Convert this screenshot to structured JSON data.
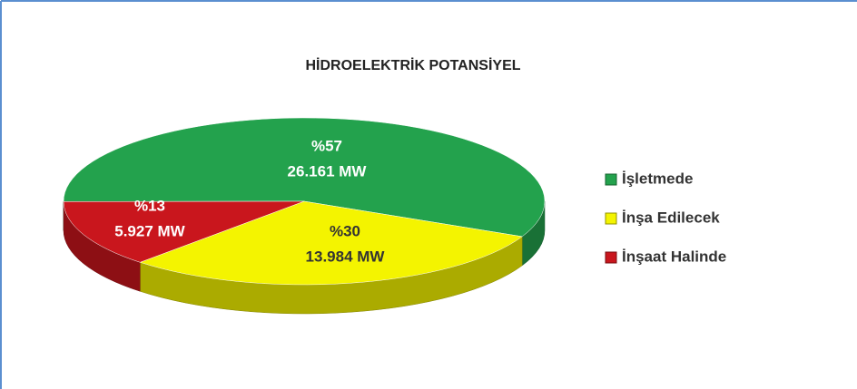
{
  "chart_data": {
    "type": "pie",
    "title": "HİDROELEKTRİK POTANSİYEL",
    "categories": [
      "İşletmede",
      "İnşa Edilecek",
      "İnşaat Halinde"
    ],
    "values": [
      57,
      30,
      13
    ],
    "value_labels": [
      "%57",
      "%30",
      "%13"
    ],
    "mw": [
      26161,
      13984,
      5927
    ],
    "mw_labels": [
      "26.161 MW",
      "13.984 MW",
      "5.927 MW"
    ],
    "colors": [
      "#23a24d",
      "#f4f400",
      "#c9161d"
    ],
    "legend": "right",
    "three_d": true
  }
}
